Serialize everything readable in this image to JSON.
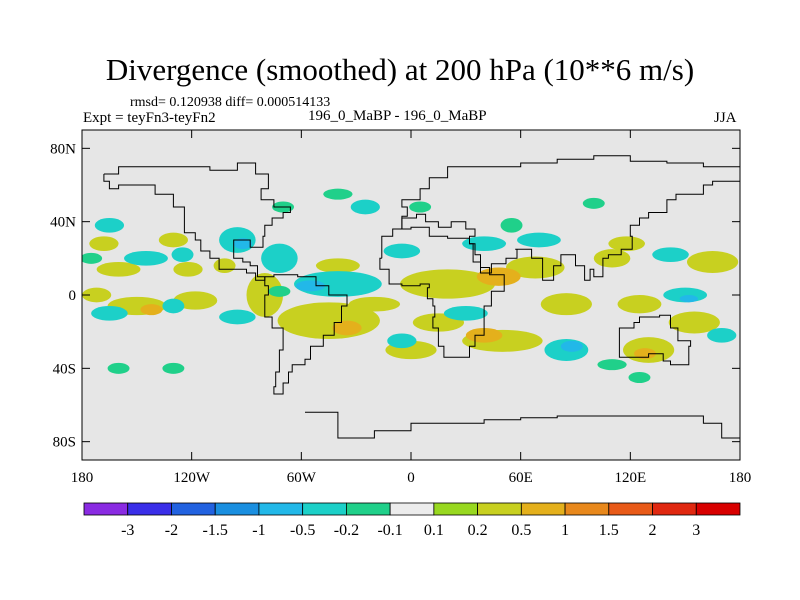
{
  "header": {
    "title": "Divergence (smoothed) at 200 hPa (10**6 m/s)",
    "stats": "rmsd= 0.120938 diff= 0.000514133",
    "experiment": "Expt = teyFn3-teyFn2",
    "runs": "196_0_MaBP - 196_0_MaBP",
    "season": "JJA"
  },
  "chart_data": {
    "type": "contour-map",
    "title": "Divergence (smoothed) at 200 hPa (10**6 m/s)",
    "variable": "Divergence",
    "level": "200 hPa",
    "units": "10**6 m/s",
    "season": "JJA",
    "rmsd": 0.120938,
    "diff": 0.000514133,
    "xlim": [
      -180,
      180
    ],
    "ylim": [
      -90,
      90
    ],
    "x_ticks": [
      {
        "value": -180,
        "label": "180"
      },
      {
        "value": -120,
        "label": "120W"
      },
      {
        "value": -60,
        "label": "60W"
      },
      {
        "value": 0,
        "label": "0"
      },
      {
        "value": 60,
        "label": "60E"
      },
      {
        "value": 120,
        "label": "120E"
      },
      {
        "value": 180,
        "label": "180"
      }
    ],
    "y_ticks": [
      {
        "value": 80,
        "label": "80N"
      },
      {
        "value": 40,
        "label": "40N"
      },
      {
        "value": 0,
        "label": "0"
      },
      {
        "value": -40,
        "label": "40S"
      },
      {
        "value": -80,
        "label": "80S"
      }
    ],
    "colorbar": {
      "labels": [
        "-3",
        "-2",
        "-1.5",
        "-1",
        "-0.5",
        "-0.2",
        "-0.1",
        "0.1",
        "0.2",
        "0.5",
        "1",
        "1.5",
        "2",
        "3"
      ],
      "colors": [
        "#8a2be2",
        "#3a2ee8",
        "#2262e0",
        "#1a8fe0",
        "#22b8e8",
        "#1cd0c8",
        "#20d08a",
        "#ececec",
        "#98d820",
        "#c8d020",
        "#e4b01c",
        "#e8881c",
        "#e85a18",
        "#e02810",
        "#d80000"
      ]
    },
    "regions": [
      {
        "lon": -172,
        "lat": 0,
        "rlon": 8,
        "rlat": 4,
        "level": "0.2"
      },
      {
        "lon": -150,
        "lat": -6,
        "rlon": 16,
        "rlat": 5,
        "level": "0.2"
      },
      {
        "lon": -118,
        "lat": -3,
        "rlon": 12,
        "rlat": 5,
        "level": "0.2"
      },
      {
        "lon": -160,
        "lat": 14,
        "rlon": 12,
        "rlat": 4,
        "level": "0.2"
      },
      {
        "lon": -122,
        "lat": 14,
        "rlon": 8,
        "rlat": 4,
        "level": "0.2"
      },
      {
        "lon": -168,
        "lat": 28,
        "rlon": 8,
        "rlat": 4,
        "level": "0.2"
      },
      {
        "lon": -130,
        "lat": 30,
        "rlon": 8,
        "rlat": 4,
        "level": "0.2"
      },
      {
        "lon": -102,
        "lat": 16,
        "rlon": 6,
        "rlat": 4,
        "level": "0.2"
      },
      {
        "lon": -80,
        "lat": 0,
        "rlon": 10,
        "rlat": 12,
        "level": "0.2"
      },
      {
        "lon": -45,
        "lat": -14,
        "rlon": 28,
        "rlat": 10,
        "level": "0.2"
      },
      {
        "lon": -40,
        "lat": 16,
        "rlon": 12,
        "rlat": 4,
        "level": "0.2"
      },
      {
        "lon": -20,
        "lat": -5,
        "rlon": 14,
        "rlat": 4,
        "level": "0.2"
      },
      {
        "lon": 20,
        "lat": 6,
        "rlon": 26,
        "rlat": 8,
        "level": "0.2"
      },
      {
        "lon": 0,
        "lat": -30,
        "rlon": 14,
        "rlat": 5,
        "level": "0.2"
      },
      {
        "lon": 15,
        "lat": -15,
        "rlon": 14,
        "rlat": 5,
        "level": "0.2"
      },
      {
        "lon": 50,
        "lat": -25,
        "rlon": 22,
        "rlat": 6,
        "level": "0.2"
      },
      {
        "lon": 68,
        "lat": 15,
        "rlon": 16,
        "rlat": 6,
        "level": "0.2"
      },
      {
        "lon": 85,
        "lat": -5,
        "rlon": 14,
        "rlat": 6,
        "level": "0.2"
      },
      {
        "lon": 110,
        "lat": 20,
        "rlon": 10,
        "rlat": 5,
        "level": "0.2"
      },
      {
        "lon": 125,
        "lat": -5,
        "rlon": 12,
        "rlat": 5,
        "level": "0.2"
      },
      {
        "lon": 130,
        "lat": -30,
        "rlon": 14,
        "rlat": 7,
        "level": "0.2"
      },
      {
        "lon": 155,
        "lat": -15,
        "rlon": 14,
        "rlat": 6,
        "level": "0.2"
      },
      {
        "lon": 165,
        "lat": 18,
        "rlon": 14,
        "rlat": 6,
        "level": "0.2"
      },
      {
        "lon": 118,
        "lat": 28,
        "rlon": 10,
        "rlat": 4,
        "level": "0.2"
      },
      {
        "lon": 48,
        "lat": 10,
        "rlon": 12,
        "rlat": 5,
        "level": "0.5"
      },
      {
        "lon": 40,
        "lat": -22,
        "rlon": 10,
        "rlat": 4,
        "level": "0.5"
      },
      {
        "lon": -35,
        "lat": -18,
        "rlon": 8,
        "rlat": 4,
        "level": "0.5"
      },
      {
        "lon": -142,
        "lat": -8,
        "rlon": 6,
        "rlat": 3,
        "level": "0.5"
      },
      {
        "lon": 128,
        "lat": -32,
        "rlon": 6,
        "rlat": 3,
        "level": "0.5"
      },
      {
        "lon": -165,
        "lat": 38,
        "rlon": 8,
        "rlat": 4,
        "level": "-0.2"
      },
      {
        "lon": -145,
        "lat": 20,
        "rlon": 12,
        "rlat": 4,
        "level": "-0.2"
      },
      {
        "lon": -125,
        "lat": 22,
        "rlon": 6,
        "rlat": 4,
        "level": "-0.2"
      },
      {
        "lon": -95,
        "lat": 30,
        "rlon": 10,
        "rlat": 7,
        "level": "-0.2"
      },
      {
        "lon": -72,
        "lat": 20,
        "rlon": 10,
        "rlat": 8,
        "level": "-0.2"
      },
      {
        "lon": -165,
        "lat": -10,
        "rlon": 10,
        "rlat": 4,
        "level": "-0.2"
      },
      {
        "lon": -130,
        "lat": -6,
        "rlon": 6,
        "rlat": 4,
        "level": "-0.2"
      },
      {
        "lon": -95,
        "lat": -12,
        "rlon": 10,
        "rlat": 4,
        "level": "-0.2"
      },
      {
        "lon": -40,
        "lat": 6,
        "rlon": 24,
        "rlat": 7,
        "level": "-0.2"
      },
      {
        "lon": -25,
        "lat": 48,
        "rlon": 8,
        "rlat": 4,
        "level": "-0.2"
      },
      {
        "lon": -5,
        "lat": 24,
        "rlon": 10,
        "rlat": 4,
        "level": "-0.2"
      },
      {
        "lon": 40,
        "lat": 28,
        "rlon": 12,
        "rlat": 4,
        "level": "-0.2"
      },
      {
        "lon": 70,
        "lat": 30,
        "rlon": 12,
        "rlat": 4,
        "level": "-0.2"
      },
      {
        "lon": 85,
        "lat": -30,
        "rlon": 12,
        "rlat": 6,
        "level": "-0.2"
      },
      {
        "lon": -5,
        "lat": -25,
        "rlon": 8,
        "rlat": 4,
        "level": "-0.2"
      },
      {
        "lon": 30,
        "lat": -10,
        "rlon": 12,
        "rlat": 4,
        "level": "-0.2"
      },
      {
        "lon": 150,
        "lat": 0,
        "rlon": 12,
        "rlat": 4,
        "level": "-0.2"
      },
      {
        "lon": 142,
        "lat": 22,
        "rlon": 10,
        "rlat": 4,
        "level": "-0.2"
      },
      {
        "lon": 170,
        "lat": -22,
        "rlon": 8,
        "rlat": 4,
        "level": "-0.2"
      },
      {
        "lon": -160,
        "lat": -40,
        "rlon": 6,
        "rlat": 3,
        "level": "-0.1"
      },
      {
        "lon": -72,
        "lat": 2,
        "rlon": 6,
        "rlat": 3,
        "level": "-0.1"
      },
      {
        "lon": 55,
        "lat": 38,
        "rlon": 6,
        "rlat": 4,
        "level": "-0.1"
      },
      {
        "lon": 100,
        "lat": 50,
        "rlon": 6,
        "rlat": 3,
        "level": "-0.1"
      },
      {
        "lon": -70,
        "lat": 48,
        "rlon": 6,
        "rlat": 3,
        "level": "-0.1"
      },
      {
        "lon": -40,
        "lat": 55,
        "rlon": 8,
        "rlat": 3,
        "level": "-0.1"
      },
      {
        "lon": 5,
        "lat": 48,
        "rlon": 6,
        "rlat": 3,
        "level": "-0.1"
      },
      {
        "lon": -175,
        "lat": 20,
        "rlon": 6,
        "rlat": 3,
        "level": "-0.1"
      },
      {
        "lon": 125,
        "lat": -45,
        "rlon": 6,
        "rlat": 3,
        "level": "-0.1"
      },
      {
        "lon": -130,
        "lat": -40,
        "rlon": 6,
        "rlat": 3,
        "level": "-0.1"
      },
      {
        "lon": 110,
        "lat": -38,
        "rlon": 8,
        "rlat": 3,
        "level": "-0.1"
      },
      {
        "lon": 88,
        "lat": -28,
        "rlon": 6,
        "rlat": 3,
        "level": "-0.5"
      },
      {
        "lon": -55,
        "lat": 5,
        "rlon": 8,
        "rlat": 3,
        "level": "-0.5"
      },
      {
        "lon": -92,
        "lat": 28,
        "rlon": 5,
        "rlat": 3,
        "level": "-0.5"
      },
      {
        "lon": 152,
        "lat": -2,
        "rlon": 5,
        "rlat": 2,
        "level": "-0.5"
      }
    ],
    "coastlines": [
      [
        [
          -168,
          66
        ],
        [
          -160,
          70
        ],
        [
          -140,
          70
        ],
        [
          -125,
          70
        ],
        [
          -110,
          68
        ],
        [
          -95,
          72
        ],
        [
          -85,
          66
        ],
        [
          -78,
          58
        ],
        [
          -82,
          52
        ],
        [
          -75,
          48
        ],
        [
          -66,
          45
        ],
        [
          -70,
          42
        ],
        [
          -76,
          38
        ],
        [
          -80,
          32
        ],
        [
          -81,
          26
        ],
        [
          -88,
          30
        ],
        [
          -97,
          26
        ],
        [
          -97,
          20
        ],
        [
          -92,
          18
        ],
        [
          -88,
          16
        ],
        [
          -84,
          10
        ],
        [
          -80,
          8
        ],
        [
          -85,
          12
        ],
        [
          -90,
          14
        ],
        [
          -105,
          20
        ],
        [
          -110,
          24
        ],
        [
          -115,
          30
        ],
        [
          -118,
          34
        ],
        [
          -124,
          42
        ],
        [
          -124,
          48
        ],
        [
          -130,
          55
        ],
        [
          -140,
          60
        ],
        [
          -150,
          60
        ],
        [
          -160,
          58
        ],
        [
          -165,
          62
        ],
        [
          -168,
          66
        ]
      ],
      [
        [
          -80,
          10
        ],
        [
          -75,
          11
        ],
        [
          -62,
          10
        ],
        [
          -52,
          5
        ],
        [
          -45,
          0
        ],
        [
          -35,
          -6
        ],
        [
          -38,
          -15
        ],
        [
          -42,
          -22
        ],
        [
          -48,
          -28
        ],
        [
          -55,
          -35
        ],
        [
          -58,
          -38
        ],
        [
          -65,
          -42
        ],
        [
          -67,
          -48
        ],
        [
          -70,
          -54
        ],
        [
          -75,
          -50
        ],
        [
          -74,
          -42
        ],
        [
          -72,
          -30
        ],
        [
          -70,
          -18
        ],
        [
          -76,
          -12
        ],
        [
          -80,
          -6
        ],
        [
          -80,
          0
        ],
        [
          -78,
          5
        ],
        [
          -80,
          10
        ]
      ],
      [
        [
          -10,
          36
        ],
        [
          -5,
          43
        ],
        [
          -2,
          48
        ],
        [
          -5,
          52
        ],
        [
          5,
          58
        ],
        [
          10,
          64
        ],
        [
          20,
          70
        ],
        [
          40,
          70
        ],
        [
          60,
          72
        ],
        [
          80,
          74
        ],
        [
          100,
          76
        ],
        [
          120,
          73
        ],
        [
          140,
          72
        ],
        [
          160,
          70
        ],
        [
          180,
          68
        ]
      ],
      [
        [
          180,
          62
        ],
        [
          165,
          60
        ],
        [
          160,
          55
        ],
        [
          145,
          52
        ],
        [
          140,
          45
        ],
        [
          130,
          42
        ],
        [
          125,
          38
        ],
        [
          120,
          32
        ],
        [
          121,
          25
        ],
        [
          115,
          22
        ],
        [
          108,
          20
        ],
        [
          105,
          10
        ],
        [
          100,
          14
        ],
        [
          98,
          8
        ],
        [
          95,
          16
        ],
        [
          90,
          22
        ],
        [
          82,
          16
        ],
        [
          78,
          8
        ],
        [
          72,
          20
        ],
        [
          66,
          25
        ],
        [
          57,
          25
        ],
        [
          58,
          20
        ],
        [
          52,
          17
        ],
        [
          44,
          12
        ],
        [
          43,
          15
        ],
        [
          38,
          22
        ],
        [
          35,
          28
        ],
        [
          32,
          32
        ],
        [
          35,
          36
        ],
        [
          30,
          40
        ],
        [
          26,
          40
        ],
        [
          22,
          37
        ],
        [
          15,
          40
        ],
        [
          8,
          44
        ],
        [
          3,
          42
        ],
        [
          -5,
          36
        ],
        [
          -10,
          36
        ]
      ],
      [
        [
          -16,
          20
        ],
        [
          -17,
          14
        ],
        [
          -12,
          6
        ],
        [
          -5,
          5
        ],
        [
          5,
          6
        ],
        [
          10,
          4
        ],
        [
          9,
          -2
        ],
        [
          12,
          -6
        ],
        [
          13,
          -12
        ],
        [
          12,
          -18
        ],
        [
          15,
          -28
        ],
        [
          18,
          -34
        ],
        [
          25,
          -34
        ],
        [
          32,
          -28
        ],
        [
          35,
          -22
        ],
        [
          40,
          -15
        ],
        [
          40,
          -6
        ],
        [
          44,
          2
        ],
        [
          51,
          11
        ],
        [
          43,
          12
        ],
        [
          38,
          18
        ],
        [
          34,
          28
        ],
        [
          32,
          31
        ],
        [
          20,
          32
        ],
        [
          10,
          37
        ],
        [
          0,
          36
        ],
        [
          -10,
          32
        ],
        [
          -16,
          20
        ]
      ],
      [
        [
          114,
          -22
        ],
        [
          114,
          -34
        ],
        [
          120,
          -34
        ],
        [
          130,
          -32
        ],
        [
          138,
          -36
        ],
        [
          142,
          -38
        ],
        [
          148,
          -38
        ],
        [
          152,
          -28
        ],
        [
          153,
          -25
        ],
        [
          146,
          -18
        ],
        [
          142,
          -11
        ],
        [
          136,
          -12
        ],
        [
          130,
          -12
        ],
        [
          125,
          -15
        ],
        [
          122,
          -18
        ],
        [
          114,
          -22
        ]
      ],
      [
        [
          -58,
          -64
        ],
        [
          -40,
          -78
        ],
        [
          -20,
          -74
        ],
        [
          0,
          -70
        ],
        [
          20,
          -70
        ],
        [
          40,
          -68
        ],
        [
          60,
          -67
        ],
        [
          80,
          -66
        ],
        [
          100,
          -66
        ],
        [
          120,
          -66
        ],
        [
          140,
          -66
        ],
        [
          160,
          -70
        ],
        [
          170,
          -78
        ],
        [
          180,
          -84
        ]
      ]
    ]
  }
}
